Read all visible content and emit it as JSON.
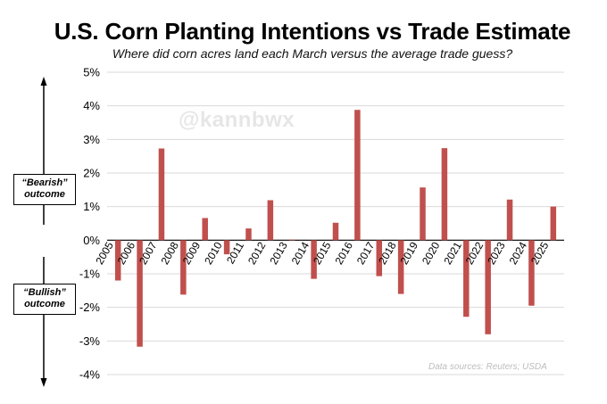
{
  "watermark": "@kannbwx",
  "source": "Data sources: Reuters; USDA",
  "annotations": {
    "bearish": {
      "line1": "“Bearish”",
      "line2": "outcome"
    },
    "bullish": {
      "line1": "“Bullish”",
      "line2": "outcome"
    }
  },
  "colors": {
    "bar": "#c0504d",
    "grid": "#d9d9d9",
    "axis": "#000000"
  },
  "chart_data": {
    "type": "bar",
    "title": "U.S. Corn Planting Intentions vs Trade Estimate",
    "subtitle": "Where did corn acres land each March versus the average trade guess?",
    "xlabel": "",
    "ylabel": "",
    "ylim": [
      -4,
      5
    ],
    "yticks": [
      -4,
      -3,
      -2,
      -1,
      0,
      1,
      2,
      3,
      4,
      5
    ],
    "ytick_labels": [
      "-4%",
      "-3%",
      "-2%",
      "-1%",
      "0%",
      "1%",
      "2%",
      "3%",
      "4%",
      "5%"
    ],
    "grid": "horizontal",
    "categories": [
      "2005",
      "2006",
      "2007",
      "2008",
      "2009",
      "2010",
      "2011",
      "2012",
      "2013",
      "2014",
      "2015",
      "2016",
      "2017",
      "2018",
      "2019",
      "2020",
      "2021",
      "2022",
      "2023",
      "2024",
      "2025"
    ],
    "values": [
      -1.2,
      -3.17,
      2.73,
      -1.62,
      0.66,
      -0.42,
      0.35,
      1.19,
      0.02,
      -1.15,
      0.52,
      3.88,
      -1.07,
      -1.6,
      1.57,
      2.74,
      -2.28,
      -2.8,
      1.21,
      -1.95,
      1.0
    ],
    "unit": "%"
  }
}
